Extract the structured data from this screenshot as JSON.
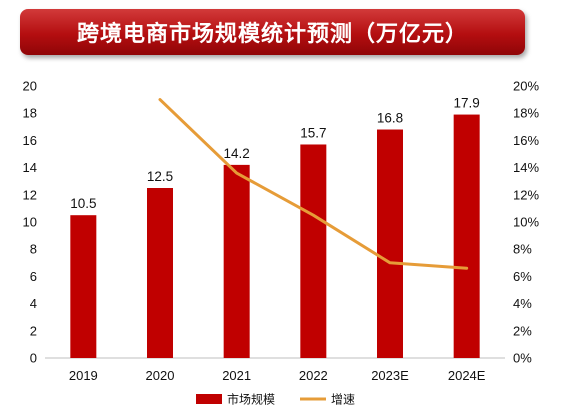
{
  "banner": {
    "title": "跨境电商市场规模统计预测（万亿元）"
  },
  "colors": {
    "bar": "#c00000",
    "line": "#e69c38",
    "banner": "#b40e10"
  },
  "chart_data": {
    "type": "bar",
    "title": "跨境电商市场规模统计预测（万亿元）",
    "categories": [
      "2019",
      "2020",
      "2021",
      "2022",
      "2023E",
      "2024E"
    ],
    "series": [
      {
        "name": "市场规模",
        "type": "bar",
        "axis": "left",
        "values": [
          10.5,
          12.5,
          14.2,
          15.7,
          16.8,
          17.9
        ]
      },
      {
        "name": "增速",
        "type": "line",
        "axis": "right",
        "values": [
          null,
          0.19,
          0.136,
          0.105,
          0.07,
          0.066
        ]
      }
    ],
    "data_labels": [
      "10.5",
      "12.5",
      "14.2",
      "15.7",
      "16.8",
      "17.9"
    ],
    "ylim_left": [
      0,
      20
    ],
    "left_ticks": [
      "0",
      "2",
      "4",
      "6",
      "8",
      "10",
      "12",
      "14",
      "16",
      "18",
      "20"
    ],
    "ylim_right": [
      0,
      0.2
    ],
    "right_ticks": [
      "0%",
      "2%",
      "4%",
      "6%",
      "8%",
      "10%",
      "12%",
      "14%",
      "16%",
      "18%",
      "20%"
    ],
    "grid": false,
    "legend": {
      "position": "bottom",
      "items": [
        {
          "label": "市场规模",
          "kind": "bar"
        },
        {
          "label": "增速",
          "kind": "line"
        }
      ]
    }
  }
}
